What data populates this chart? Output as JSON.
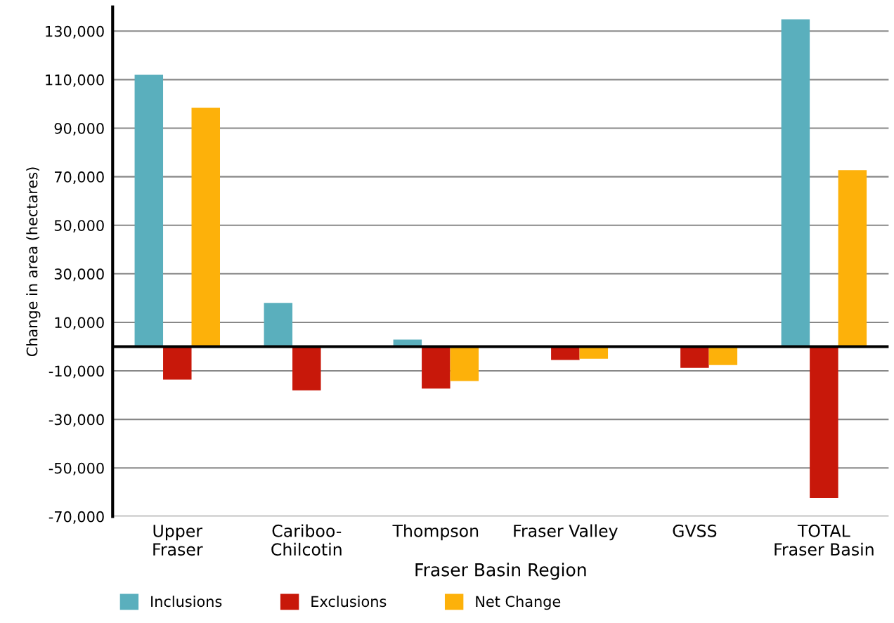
{
  "chart_data": {
    "type": "bar",
    "xlabel": "Fraser Basin Region",
    "ylabel": "Change in area (hectares)",
    "categories": [
      "Upper\nFraser",
      "Cariboo-\nChilcotin",
      "Thompson",
      "Fraser Valley",
      "GVSS",
      "TOTAL\nFraser Basin"
    ],
    "series": [
      {
        "name": "Inclusions",
        "color": "#5aafbd",
        "values": [
          112000,
          18000,
          2900,
          null,
          null,
          134900
        ]
      },
      {
        "name": "Exclusions",
        "color": "#c8180a",
        "values": [
          -13600,
          -18000,
          -17300,
          -5500,
          -8800,
          -62400
        ]
      },
      {
        "name": "Net Change",
        "color": "#fdb10a",
        "values": [
          98400,
          null,
          -14200,
          -5000,
          -7600,
          72700
        ]
      }
    ],
    "ylim": [
      -70000,
      140000
    ],
    "yticks": [
      {
        "value": -70000,
        "label": "-70,000"
      },
      {
        "value": -50000,
        "label": "-50,000"
      },
      {
        "value": -30000,
        "label": "-30,000"
      },
      {
        "value": -10000,
        "label": "-10,000"
      },
      {
        "value": 10000,
        "label": "10,000"
      },
      {
        "value": 30000,
        "label": "30,000"
      },
      {
        "value": 50000,
        "label": "50,000"
      },
      {
        "value": 70000,
        "label": "70,000"
      },
      {
        "value": 90000,
        "label": "90,000"
      },
      {
        "value": 110000,
        "label": "110,000"
      },
      {
        "value": 130000,
        "label": "130,000"
      }
    ],
    "grid": "y",
    "legend": "bottom"
  }
}
